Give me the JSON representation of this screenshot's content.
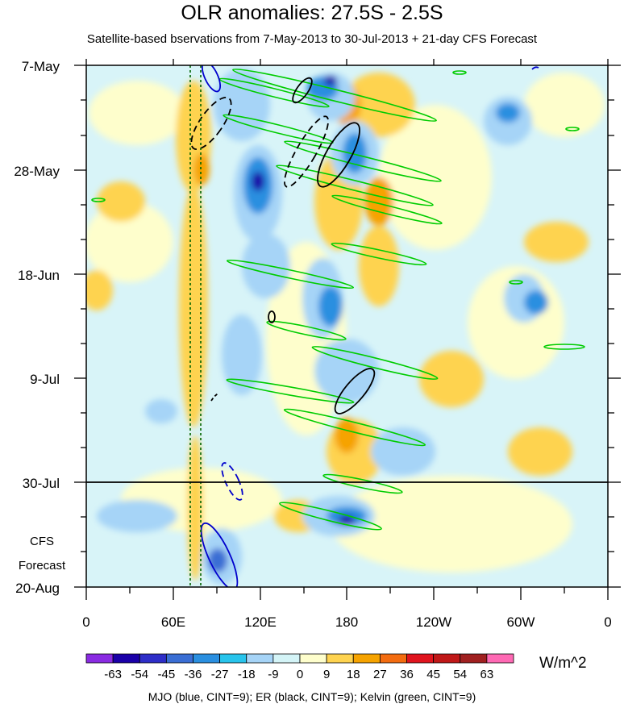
{
  "title": "OLR anomalies: 27.5S - 2.5S",
  "subtitle": "Satellite-based bservations from 7-May-2013 to 30-Jul-2013 + 21-day CFS Forecast",
  "footnote": "MJO (blue, CINT=9); ER (black, CINT=9); Kelvin (green, CINT=9)",
  "units": "W/m^2",
  "forecast_label": [
    "CFS",
    "Forecast"
  ],
  "chart_data": {
    "type": "heatmap",
    "title": "OLR anomalies: 27.5S - 2.5S",
    "x_axis": {
      "quantity": "longitude",
      "ticks": [
        "0",
        "60E",
        "120E",
        "180",
        "120W",
        "60W",
        "0"
      ],
      "range_deg_east": [
        0,
        360
      ]
    },
    "y_axis": {
      "quantity": "date",
      "ticks": [
        "7-May",
        "28-May",
        "18-Jun",
        "9-Jul",
        "30-Jul",
        "20-Aug"
      ],
      "range": [
        "2013-05-07",
        "2013-08-20"
      ],
      "observation_end": "2013-07-30",
      "forecast_days": 21
    },
    "colorbar": {
      "labels": [
        "-63",
        "-54",
        "-45",
        "-36",
        "-27",
        "-18",
        "-9",
        "0",
        "9",
        "18",
        "27",
        "36",
        "45",
        "54",
        "63"
      ],
      "colors": [
        "#8a2be2",
        "#1a00a8",
        "#2e2ec8",
        "#3a6ed4",
        "#2a8fe0",
        "#28c4ec",
        "#a6d4f7",
        "#d4f4f7",
        "#fefecc",
        "#fed350",
        "#f6a300",
        "#f36c10",
        "#e0141e",
        "#c01818",
        "#a02020",
        "#ff69b4"
      ],
      "units": "W/m^2"
    },
    "reference_lines": {
      "observation_end": "30-Jul",
      "dotted_green_longitudes": [
        "72E",
        "80E"
      ]
    },
    "overlays": {
      "MJO": {
        "color": "#0000cc",
        "cint": 9
      },
      "ER": {
        "color": "#000000",
        "cint": 9
      },
      "Kelvin": {
        "color": "#00cc00",
        "cint": 9
      }
    }
  }
}
